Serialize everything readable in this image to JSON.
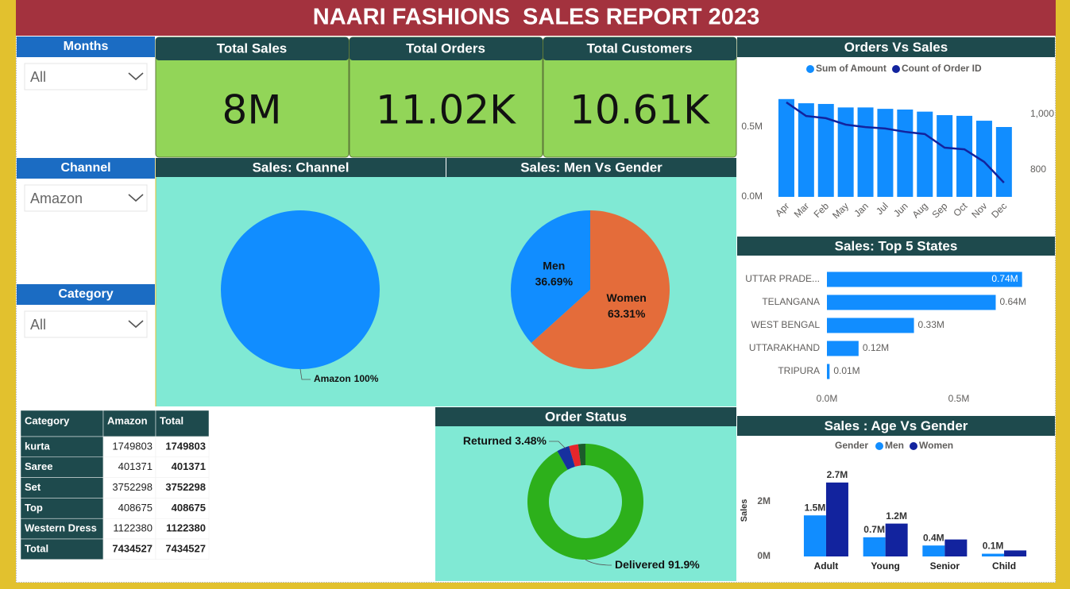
{
  "header": {
    "title": "NAARI FASHIONS  SALES REPORT 2023"
  },
  "slicers": [
    {
      "label": "Months",
      "selected": "All"
    },
    {
      "label": "Channel",
      "selected": "Amazon"
    },
    {
      "label": "Category",
      "selected": "All"
    }
  ],
  "kpis": [
    {
      "label": "Total Sales",
      "value": "8M"
    },
    {
      "label": "Total Orders",
      "value": "11.02K"
    },
    {
      "label": "Total Customers",
      "value": "10.61K"
    }
  ],
  "table": {
    "columns": [
      "Category",
      "Amazon",
      "Total"
    ],
    "rows": [
      [
        "kurta",
        1749803,
        1749803
      ],
      [
        "Saree",
        401371,
        401371
      ],
      [
        "Set",
        3752298,
        3752298
      ],
      [
        "Top",
        408675,
        408675
      ],
      [
        "Western Dress",
        1122380,
        1122380
      ],
      [
        "Total",
        7434527,
        7434527
      ]
    ]
  },
  "chart_data": [
    {
      "type": "pie",
      "title": "Sales: Channel",
      "categories": [
        "Amazon"
      ],
      "values": [
        100
      ],
      "value_labels": [
        "100%"
      ],
      "colors": [
        "#118dff"
      ]
    },
    {
      "type": "pie",
      "title": "Sales: Men Vs Gender",
      "categories": [
        "Women",
        "Men"
      ],
      "values": [
        63.31,
        36.69
      ],
      "value_labels": [
        "63.31%",
        "36.69%"
      ],
      "colors": [
        "#e46c3a",
        "#118dff"
      ]
    },
    {
      "type": "donut",
      "title": "Order Status",
      "categories": [
        "Delivered",
        "Returned",
        null,
        null
      ],
      "values": [
        91.9,
        3.48,
        2.6,
        2.0
      ],
      "value_labels": [
        "91.9%",
        "3.48%",
        null,
        null
      ],
      "colors": [
        "#2db01b",
        "#17309f",
        "#e5262b",
        "#1b5c2b"
      ]
    },
    {
      "type": "combo",
      "title": "Orders Vs Sales",
      "categories": [
        "Apr",
        "Mar",
        "Feb",
        "May",
        "Jan",
        "Jul",
        "Jun",
        "Aug",
        "Sep",
        "Oct",
        "Nov",
        "Dec"
      ],
      "series": [
        {
          "name": "Sum of Amount",
          "type": "bar",
          "color": "#118dff",
          "values": [
            0.7,
            0.67,
            0.665,
            0.64,
            0.64,
            0.63,
            0.625,
            0.61,
            0.585,
            0.58,
            0.545,
            0.5
          ]
        },
        {
          "name": "Count of Order ID",
          "type": "line",
          "axis": "y2",
          "color": "#12239e",
          "values": [
            1043,
            994,
            986,
            963,
            954,
            949,
            937,
            929,
            880,
            874,
            829,
            754
          ]
        }
      ],
      "ylim": [
        0,
        0.75
      ],
      "yticks": [
        {
          "value": 0,
          "label": "0.0M"
        },
        {
          "value": 0.5,
          "label": "0.5M"
        }
      ],
      "y2lim": [
        703,
        1080
      ],
      "y2ticks": [
        800,
        {
          "value": 1000,
          "label": "1,000"
        }
      ]
    },
    {
      "type": "bar",
      "orientation": "horizontal",
      "title": "Sales: Top 5 States",
      "categories": [
        "UTTAR PRADE...",
        "TELANGANA",
        "WEST BENGAL",
        "UTTARAKHAND",
        "TRIPURA"
      ],
      "values": [
        0.74,
        0.64,
        0.33,
        0.12,
        0.01
      ],
      "value_labels": [
        "0.74M",
        "0.64M",
        "0.33M",
        "0.12M",
        "0.01M"
      ],
      "color": "#118dff",
      "xlim": [
        0,
        0.85
      ],
      "xticks": [
        {
          "value": 0,
          "label": "0.0M"
        },
        {
          "value": 0.5,
          "label": "0.5M"
        }
      ]
    },
    {
      "type": "bar",
      "title": "Sales : Age Vs Gender",
      "legend_title": "Gender",
      "y_label": "Sales",
      "categories": [
        "Adult",
        "Young",
        "Senior",
        "Child"
      ],
      "series": [
        {
          "name": "Men",
          "color": "#118dff",
          "values": [
            1.5,
            0.7,
            0.4,
            0.1
          ],
          "value_labels": [
            "1.5M",
            "0.7M",
            "0.4M",
            "0.1M"
          ]
        },
        {
          "name": "Women",
          "color": "#12239e",
          "values": [
            2.7,
            1.2,
            0.62,
            0.22
          ],
          "value_labels": [
            "2.7M",
            "1.2M",
            null,
            null
          ]
        }
      ],
      "ylim": [
        0,
        3.2
      ],
      "yticks": [
        {
          "value": 0,
          "label": "0M"
        },
        {
          "value": 2,
          "label": "2M"
        }
      ]
    }
  ]
}
